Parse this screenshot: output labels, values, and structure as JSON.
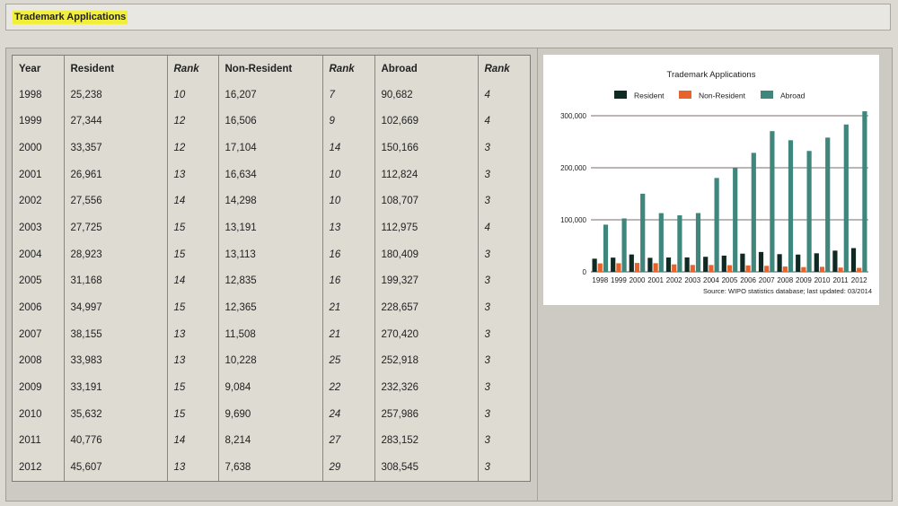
{
  "header": {
    "title": "Trademark Applications"
  },
  "table": {
    "columns": [
      "Year",
      "Resident",
      "Rank",
      "Non-Resident",
      "Rank",
      "Abroad",
      "Rank"
    ],
    "rows": [
      [
        "1998",
        "25,238",
        "10",
        "16,207",
        "7",
        "90,682",
        "4"
      ],
      [
        "1999",
        "27,344",
        "12",
        "16,506",
        "9",
        "102,669",
        "4"
      ],
      [
        "2000",
        "33,357",
        "12",
        "17,104",
        "14",
        "150,166",
        "3"
      ],
      [
        "2001",
        "26,961",
        "13",
        "16,634",
        "10",
        "112,824",
        "3"
      ],
      [
        "2002",
        "27,556",
        "14",
        "14,298",
        "10",
        "108,707",
        "3"
      ],
      [
        "2003",
        "27,725",
        "15",
        "13,191",
        "13",
        "112,975",
        "4"
      ],
      [
        "2004",
        "28,923",
        "15",
        "13,113",
        "16",
        "180,409",
        "3"
      ],
      [
        "2005",
        "31,168",
        "14",
        "12,835",
        "16",
        "199,327",
        "3"
      ],
      [
        "2006",
        "34,997",
        "15",
        "12,365",
        "21",
        "228,657",
        "3"
      ],
      [
        "2007",
        "38,155",
        "13",
        "11,508",
        "21",
        "270,420",
        "3"
      ],
      [
        "2008",
        "33,983",
        "13",
        "10,228",
        "25",
        "252,918",
        "3"
      ],
      [
        "2009",
        "33,191",
        "15",
        "9,084",
        "22",
        "232,326",
        "3"
      ],
      [
        "2010",
        "35,632",
        "15",
        "9,690",
        "24",
        "257,986",
        "3"
      ],
      [
        "2011",
        "40,776",
        "14",
        "8,214",
        "27",
        "283,152",
        "3"
      ],
      [
        "2012",
        "45,607",
        "13",
        "7,638",
        "29",
        "308,545",
        "3"
      ]
    ]
  },
  "chart_data": {
    "type": "bar",
    "title": "Trademark Applications",
    "source": "Source: WIPO statistics database; last updated: 03/2014",
    "categories": [
      "1998",
      "1999",
      "2000",
      "2001",
      "2002",
      "2003",
      "2004",
      "2005",
      "2006",
      "2007",
      "2008",
      "2009",
      "2010",
      "2011",
      "2012"
    ],
    "series": [
      {
        "name": "Resident",
        "color": "#0e2a22",
        "values": [
          25238,
          27344,
          33357,
          26961,
          27556,
          27725,
          28923,
          31168,
          34997,
          38155,
          33983,
          33191,
          35632,
          40776,
          45607
        ]
      },
      {
        "name": "Non-Resident",
        "color": "#e8622b",
        "values": [
          16207,
          16506,
          17104,
          16634,
          14298,
          13191,
          13113,
          12835,
          12365,
          11508,
          10228,
          9084,
          9690,
          8214,
          7638
        ]
      },
      {
        "name": "Abroad",
        "color": "#3f877c",
        "values": [
          90682,
          102669,
          150166,
          112824,
          108707,
          112975,
          180409,
          199327,
          228657,
          270420,
          252918,
          232326,
          257986,
          283152,
          308545
        ]
      }
    ],
    "yticks": [
      "0",
      "100,000",
      "200,000",
      "300,000"
    ],
    "ylim": [
      0,
      300000
    ],
    "grid": true,
    "legend": "top"
  }
}
